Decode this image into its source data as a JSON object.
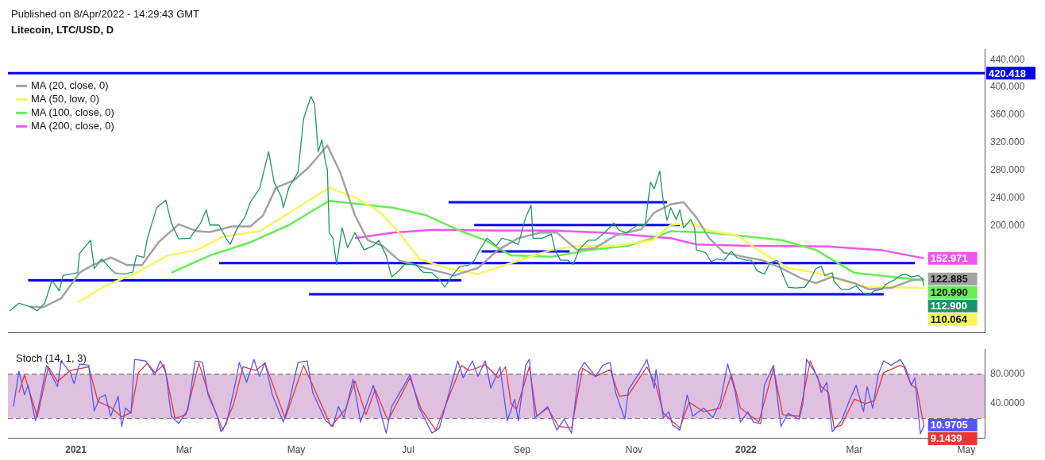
{
  "chart_data": [
    {
      "type": "line",
      "title": "Litecoin, LTC/USD, D",
      "annotations": [
        "Published on 8/Apr/2022 - 14:29:43 GMT"
      ],
      "xlim": [
        "2020-11-25",
        "2022-05-11"
      ],
      "ylim": [
        45,
        455
      ],
      "yticks": [
        {
          "value": 200,
          "label": "200.000"
        },
        {
          "value": 240,
          "label": "240.000"
        },
        {
          "value": 280,
          "label": "280.000"
        },
        {
          "value": 320,
          "label": "320.000"
        },
        {
          "value": 360,
          "label": "360.000"
        },
        {
          "value": 400,
          "label": "400.000"
        },
        {
          "value": 440,
          "label": "440.000"
        }
      ],
      "tick_labels": "y",
      "legend": "top left",
      "ref_lines": [
        {
          "axis": "y",
          "value": 420.418,
          "label": "420.418",
          "color": "#0000ff"
        }
      ],
      "series": [
        {
          "color": "#1f9468",
          "x": [
            "2020-11-26",
            "2020-12-01",
            "2020-12-07",
            "2020-12-11",
            "2020-12-15",
            "2020-12-19",
            "2020-12-23",
            "2020-12-25",
            "2021-01-02",
            "2021-01-03",
            "2021-01-09",
            "2021-01-11",
            "2021-01-15",
            "2021-01-22",
            "2021-01-27",
            "2021-02-01",
            "2021-02-03",
            "2021-02-07",
            "2021-02-09",
            "2021-02-14",
            "2021-02-19",
            "2021-02-22",
            "2021-02-26",
            "2021-03-04",
            "2021-03-10",
            "2021-03-13",
            "2021-03-15",
            "2021-03-20",
            "2021-03-24",
            "2021-03-26",
            "2021-03-30",
            "2021-04-03",
            "2021-04-06",
            "2021-04-11",
            "2021-04-16",
            "2021-04-19",
            "2021-04-23",
            "2021-04-24",
            "2021-04-27",
            "2021-05-02",
            "2021-05-05",
            "2021-05-09",
            "2021-05-11",
            "2021-05-13",
            "2021-05-15",
            "2021-05-17",
            "2021-05-18",
            "2021-05-19",
            "2021-05-21",
            "2021-05-23",
            "2021-05-26",
            "2021-05-29",
            "2021-06-02",
            "2021-06-07",
            "2021-06-12",
            "2021-06-15",
            "2021-06-19",
            "2021-06-22",
            "2021-06-26",
            "2021-06-29",
            "2021-07-05",
            "2021-07-09",
            "2021-07-14",
            "2021-07-19",
            "2021-07-21",
            "2021-07-24",
            "2021-07-29",
            "2021-08-03",
            "2021-08-06",
            "2021-08-09",
            "2021-08-13",
            "2021-08-18",
            "2021-08-21",
            "2021-08-25",
            "2021-08-30",
            "2021-09-03",
            "2021-09-06",
            "2021-09-07",
            "2021-09-12",
            "2021-09-17",
            "2021-09-19",
            "2021-09-22",
            "2021-09-26",
            "2021-09-29",
            "2021-10-02",
            "2021-10-07",
            "2021-10-11",
            "2021-10-16",
            "2021-10-21",
            "2021-10-24",
            "2021-10-28",
            "2021-11-03",
            "2021-11-07",
            "2021-11-10",
            "2021-11-12",
            "2021-11-15",
            "2021-11-17",
            "2021-11-19",
            "2021-11-21",
            "2021-11-24",
            "2021-11-26",
            "2021-11-28",
            "2021-12-02",
            "2021-12-04",
            "2021-12-05",
            "2021-12-10",
            "2021-12-13",
            "2021-12-16",
            "2021-12-20",
            "2021-12-24",
            "2021-12-27",
            "2022-01-01",
            "2022-01-04",
            "2022-01-07",
            "2022-01-11",
            "2022-01-14",
            "2022-01-18",
            "2022-01-21",
            "2022-01-24",
            "2022-01-28",
            "2022-02-02",
            "2022-02-05",
            "2022-02-08",
            "2022-02-11",
            "2022-02-13",
            "2022-02-17",
            "2022-02-18",
            "2022-02-22",
            "2022-02-26",
            "2022-03-02",
            "2022-03-06",
            "2022-03-09",
            "2022-03-12",
            "2022-03-16",
            "2022-03-18",
            "2022-03-23",
            "2022-03-26",
            "2022-03-29",
            "2022-04-01",
            "2022-04-05",
            "2022-04-07",
            "2022-04-08"
          ],
          "values": [
            77,
            88,
            83,
            77,
            88,
            121,
            106,
            128,
            132,
            160,
            179,
            138,
            152,
            132,
            130,
            133,
            157,
            154,
            182,
            226,
            237,
            204,
            181,
            182,
            204,
            223,
            201,
            201,
            181,
            173,
            197,
            212,
            234,
            253,
            307,
            263,
            241,
            226,
            255,
            277,
            354,
            387,
            376,
            307,
            324,
            291,
            281,
            190,
            182,
            144,
            197,
            168,
            190,
            165,
            171,
            179,
            157,
            126,
            135,
            144,
            144,
            133,
            132,
            119,
            111,
            124,
            141,
            143,
            150,
            165,
            182,
            171,
            182,
            179,
            173,
            212,
            230,
            182,
            182,
            188,
            165,
            150,
            150,
            144,
            165,
            179,
            179,
            190,
            204,
            193,
            190,
            201,
            201,
            263,
            253,
            279,
            234,
            208,
            226,
            209,
            223,
            197,
            209,
            197,
            165,
            161,
            148,
            152,
            150,
            163,
            154,
            150,
            150,
            135,
            130,
            146,
            150,
            130,
            111,
            110,
            111,
            122,
            138,
            141,
            128,
            132,
            119,
            108,
            108,
            113,
            102,
            100,
            106,
            108,
            115,
            122,
            128,
            130,
            126,
            128,
            124,
            112.9
          ],
          "value_labels": [
            null,
            null,
            null,
            null,
            null,
            null,
            null,
            null,
            null,
            null,
            null,
            null,
            null,
            null,
            null,
            null,
            null,
            null,
            null,
            null,
            null,
            null,
            null,
            null,
            null,
            null,
            null,
            null,
            null,
            null,
            null,
            null,
            null,
            null,
            null,
            null,
            null,
            null,
            null,
            null,
            null,
            null,
            null,
            null,
            null,
            null,
            null,
            null,
            null,
            null,
            null,
            null,
            null,
            null,
            null,
            null,
            null,
            null,
            null,
            null,
            null,
            null,
            null,
            null,
            null,
            null,
            null,
            null,
            null,
            null,
            null,
            null,
            null,
            null,
            null,
            null,
            null,
            null,
            null,
            null,
            null,
            null,
            null,
            null,
            null,
            null,
            null,
            null,
            null,
            null,
            null,
            null,
            null,
            null,
            null,
            null,
            null,
            null,
            null,
            null,
            null,
            null,
            null,
            null,
            null,
            null,
            null,
            null,
            null,
            null,
            null,
            null,
            null,
            null,
            null,
            null,
            null,
            null,
            null,
            null,
            null,
            null,
            null,
            null,
            null,
            null,
            null,
            null,
            null,
            null,
            null,
            null,
            null,
            null,
            null,
            null,
            null,
            null,
            null,
            null,
            null,
            "112.900"
          ]
        },
        {
          "name": "MA (20, close, 0)",
          "color": "#a3a3a3",
          "x": [
            "2020-12-07",
            "2020-12-14",
            "2020-12-24",
            "2021-01-03",
            "2021-01-10",
            "2021-01-20",
            "2021-01-29",
            "2021-02-06",
            "2021-02-15",
            "2021-02-26",
            "2021-03-08",
            "2021-03-15",
            "2021-03-27",
            "2021-04-06",
            "2021-04-13",
            "2021-04-20",
            "2021-04-30",
            "2021-05-08",
            "2021-05-18",
            "2021-05-25",
            "2021-06-02",
            "2021-06-09",
            "2021-06-17",
            "2021-06-26",
            "2021-07-10",
            "2021-07-26",
            "2021-08-08",
            "2021-08-19",
            "2021-08-30",
            "2021-09-11",
            "2021-09-20",
            "2021-10-01",
            "2021-10-11",
            "2021-10-22",
            "2021-11-05",
            "2021-11-12",
            "2021-11-21",
            "2021-11-28",
            "2021-12-05",
            "2021-12-12",
            "2021-12-20",
            "2021-12-31",
            "2022-01-10",
            "2022-01-20",
            "2022-01-31",
            "2022-02-08",
            "2022-02-17",
            "2022-03-01",
            "2022-03-09",
            "2022-03-21",
            "2022-04-01",
            "2022-04-08"
          ],
          "values": [
            83,
            82,
            95,
            132,
            143,
            154,
            143,
            143,
            176,
            202,
            192,
            191,
            199,
            199,
            215,
            255,
            266,
            285,
            316,
            277,
            215,
            179,
            171,
            150,
            139,
            128,
            139,
            165,
            182,
            190,
            190,
            165,
            168,
            186,
            195,
            219,
            231,
            234,
            212,
            182,
            161,
            155,
            150,
            139,
            124,
            117,
            126,
            117,
            108,
            110,
            121,
            122.885
          ],
          "value_labels": [
            null,
            null,
            null,
            null,
            null,
            null,
            null,
            null,
            null,
            null,
            null,
            null,
            null,
            null,
            null,
            null,
            null,
            null,
            null,
            null,
            null,
            null,
            null,
            null,
            null,
            null,
            null,
            null,
            null,
            null,
            null,
            null,
            null,
            null,
            null,
            null,
            null,
            null,
            null,
            null,
            null,
            null,
            null,
            null,
            null,
            null,
            null,
            null,
            null,
            null,
            null,
            "122.885"
          ]
        },
        {
          "name": "MA (50, low, 0)",
          "color": "#f5f562",
          "x": [
            "2021-01-02",
            "2021-01-17",
            "2021-02-03",
            "2021-02-20",
            "2021-03-08",
            "2021-03-22",
            "2021-04-11",
            "2021-04-21",
            "2021-05-04",
            "2021-05-19",
            "2021-06-02",
            "2021-06-16",
            "2021-06-26",
            "2021-07-07",
            "2021-07-22",
            "2021-08-08",
            "2021-08-26",
            "2021-09-17",
            "2021-10-01",
            "2021-10-22",
            "2021-11-11",
            "2021-11-21",
            "2021-12-02",
            "2021-12-12",
            "2021-12-27",
            "2022-01-10",
            "2022-01-24",
            "2022-02-08",
            "2022-02-22",
            "2022-03-08",
            "2022-03-22",
            "2022-04-08"
          ],
          "values": [
            89,
            113,
            132,
            157,
            165,
            184,
            192,
            208,
            230,
            255,
            241,
            219,
            190,
            152,
            139,
            130,
            146,
            165,
            171,
            171,
            179,
            201,
            204,
            193,
            186,
            161,
            139,
            132,
            121,
            111,
            111,
            110.064
          ],
          "value_labels": [
            null,
            null,
            null,
            null,
            null,
            null,
            null,
            null,
            null,
            null,
            null,
            null,
            null,
            null,
            null,
            null,
            null,
            null,
            null,
            null,
            null,
            null,
            null,
            null,
            null,
            null,
            null,
            null,
            null,
            null,
            null,
            "110.064"
          ]
        },
        {
          "name": "MA (100, close, 0)",
          "color": "#66ee55",
          "x": [
            "2021-02-22",
            "2021-03-15",
            "2021-04-06",
            "2021-04-27",
            "2021-05-19",
            "2021-06-09",
            "2021-06-23",
            "2021-07-11",
            "2021-07-29",
            "2021-08-12",
            "2021-08-26",
            "2021-09-17",
            "2021-10-08",
            "2021-10-29",
            "2021-11-11",
            "2021-11-21",
            "2021-12-12",
            "2022-01-03",
            "2022-01-21",
            "2022-02-08",
            "2022-03-01",
            "2022-03-22",
            "2022-04-08"
          ],
          "values": [
            132,
            157,
            176,
            201,
            236,
            230,
            226,
            215,
            193,
            179,
            157,
            155,
            165,
            171,
            182,
            192,
            190,
            184,
            179,
            165,
            132,
            126,
            120.99
          ],
          "value_labels": [
            null,
            null,
            null,
            null,
            null,
            null,
            null,
            null,
            null,
            null,
            null,
            null,
            null,
            null,
            null,
            null,
            null,
            null,
            null,
            null,
            null,
            null,
            "120.990"
          ]
        },
        {
          "name": "MA (200, close, 0)",
          "color": "#ee55ee",
          "x": [
            "2021-06-02",
            "2021-06-23",
            "2021-07-14",
            "2021-08-19",
            "2021-09-17",
            "2021-10-15",
            "2021-11-11",
            "2021-11-21",
            "2021-12-05",
            "2022-01-03",
            "2022-02-14",
            "2022-03-15",
            "2022-04-08"
          ],
          "values": [
            182,
            190,
            194,
            193,
            193,
            190,
            184,
            182,
            173,
            171,
            170,
            165,
            152.971
          ],
          "value_labels": [
            null,
            null,
            null,
            null,
            null,
            null,
            null,
            null,
            null,
            null,
            null,
            null,
            "152.971"
          ]
        },
        {
          "color": "#0000ff",
          "x": [
            "2020-12-06",
            "2021-07-30"
          ],
          "values": [
            121,
            121
          ]
        },
        {
          "color": "#0000ff",
          "x": [
            "2021-03-20",
            "2022-04-03"
          ],
          "values": [
            146,
            146
          ]
        },
        {
          "color": "#0000ff",
          "x": [
            "2021-05-08",
            "2022-03-17"
          ],
          "values": [
            101,
            101
          ]
        },
        {
          "color": "#0000ff",
          "x": [
            "2021-07-23",
            "2021-11-19"
          ],
          "values": [
            234,
            234
          ]
        },
        {
          "color": "#0000ff",
          "x": [
            "2021-08-06",
            "2021-11-26"
          ],
          "values": [
            201,
            201
          ]
        },
        {
          "color": "#0000ff",
          "x": [
            "2021-08-10",
            "2021-09-27"
          ],
          "values": [
            163,
            163
          ]
        }
      ]
    },
    {
      "type": "line",
      "title": "Stoch (14, 1, 3)",
      "xlim": [
        "2020-11-25",
        "2022-05-11"
      ],
      "xticks": [
        {
          "value": "2021-01-01",
          "label": "2021"
        },
        {
          "value": "2021-03-01",
          "label": "Mar"
        },
        {
          "value": "2021-05-01",
          "label": "May"
        },
        {
          "value": "2021-07-01",
          "label": "Jul"
        },
        {
          "value": "2021-09-01",
          "label": "Sep"
        },
        {
          "value": "2021-11-01",
          "label": "Nov"
        },
        {
          "value": "2022-01-01",
          "label": "2022"
        },
        {
          "value": "2022-03-01",
          "label": "Mar"
        },
        {
          "value": "2022-05-01",
          "label": "May"
        }
      ],
      "ylim": [
        -7,
        114
      ],
      "yticks": [
        {
          "value": 40,
          "label": "40.0000"
        },
        {
          "value": 80,
          "label": "80.0000"
        }
      ],
      "bands": [
        {
          "axis": "y",
          "from": 20,
          "to": 80,
          "color": "#dfc1df"
        }
      ],
      "ref_lines": [
        {
          "axis": "y",
          "value": 80,
          "color": "#777777",
          "line_style": "dashed"
        },
        {
          "axis": "y",
          "value": 20,
          "color": "#777777",
          "line_style": "dashed"
        }
      ],
      "series": [
        {
          "color": "#5555ff",
          "x": [
            "2020-11-28",
            "2020-12-01",
            "2020-12-04",
            "2020-12-06",
            "2020-12-10",
            "2020-12-13",
            "2020-12-16",
            "2020-12-22",
            "2020-12-24",
            "2020-12-29",
            "2020-12-31",
            "2021-01-03",
            "2021-01-08",
            "2021-01-11",
            "2021-01-14",
            "2021-01-17",
            "2021-01-20",
            "2021-01-24",
            "2021-01-26",
            "2021-01-28",
            "2021-01-31",
            "2021-02-02",
            "2021-02-08",
            "2021-02-13",
            "2021-02-16",
            "2021-02-19",
            "2021-02-22",
            "2021-02-26",
            "2021-03-03",
            "2021-03-07",
            "2021-03-11",
            "2021-03-14",
            "2021-03-19",
            "2021-03-21",
            "2021-03-24",
            "2021-03-29",
            "2021-03-31",
            "2021-04-04",
            "2021-04-08",
            "2021-04-11",
            "2021-04-14",
            "2021-04-18",
            "2021-04-24",
            "2021-04-27",
            "2021-05-02",
            "2021-05-07",
            "2021-05-10",
            "2021-05-17",
            "2021-05-21",
            "2021-05-24",
            "2021-05-27",
            "2021-06-01",
            "2021-06-05",
            "2021-06-12",
            "2021-06-19",
            "2021-06-22",
            "2021-07-02",
            "2021-07-07",
            "2021-07-14",
            "2021-07-18",
            "2021-07-28",
            "2021-07-31",
            "2021-08-05",
            "2021-08-08",
            "2021-08-12",
            "2021-08-15",
            "2021-08-20",
            "2021-08-24",
            "2021-08-28",
            "2021-08-30",
            "2021-09-03",
            "2021-09-05",
            "2021-09-08",
            "2021-09-11",
            "2021-09-15",
            "2021-09-20",
            "2021-09-24",
            "2021-09-28",
            "2021-10-02",
            "2021-10-05",
            "2021-10-11",
            "2021-10-15",
            "2021-10-19",
            "2021-10-22",
            "2021-10-27",
            "2021-10-29",
            "2021-11-05",
            "2021-11-08",
            "2021-11-12",
            "2021-11-13",
            "2021-11-17",
            "2021-11-20",
            "2021-11-22",
            "2021-11-26",
            "2021-11-30",
            "2021-12-03",
            "2021-12-09",
            "2021-12-14",
            "2021-12-18",
            "2021-12-22",
            "2021-12-26",
            "2021-12-29",
            "2022-01-02",
            "2022-01-05",
            "2022-01-09",
            "2022-01-11",
            "2022-01-16",
            "2022-01-20",
            "2022-01-24",
            "2022-01-30",
            "2022-02-01",
            "2022-02-03",
            "2022-02-09",
            "2022-02-11",
            "2022-02-14",
            "2022-02-17",
            "2022-02-22",
            "2022-02-26",
            "2022-03-02",
            "2022-03-06",
            "2022-03-08",
            "2022-03-11",
            "2022-03-14",
            "2022-03-17",
            "2022-03-21",
            "2022-03-26",
            "2022-03-29",
            "2022-04-01",
            "2022-04-03",
            "2022-04-06",
            "2022-04-08"
          ],
          "values": [
            36,
            84,
            52,
            65,
            17,
            52,
            92,
            63,
            98,
            82,
            67,
            94,
            92,
            30,
            48,
            52,
            23,
            50,
            9,
            34,
            27,
            100,
            98,
            79,
            98,
            82,
            23,
            13,
            32,
            98,
            96,
            52,
            23,
            2,
            13,
            69,
            96,
            69,
            100,
            77,
            96,
            52,
            15,
            40,
            96,
            98,
            55,
            17,
            9,
            36,
            21,
            73,
            15,
            65,
            0,
            36,
            79,
            34,
            0,
            7,
            98,
            75,
            98,
            77,
            98,
            61,
            90,
            17,
            46,
            17,
            92,
            100,
            21,
            27,
            36,
            4,
            19,
            0,
            84,
            96,
            77,
            92,
            96,
            55,
            19,
            59,
            86,
            100,
            61,
            86,
            21,
            29,
            11,
            4,
            52,
            23,
            34,
            21,
            42,
            94,
            57,
            15,
            29,
            15,
            13,
            65,
            92,
            9,
            27,
            19,
            40,
            100,
            77,
            55,
            69,
            2,
            17,
            42,
            65,
            29,
            63,
            34,
            79,
            98,
            92,
            100,
            88,
            65,
            75,
            -1,
            10.9705
          ],
          "value_labels": [
            null,
            null,
            null,
            null,
            null,
            null,
            null,
            null,
            null,
            null,
            null,
            null,
            null,
            null,
            null,
            null,
            null,
            null,
            null,
            null,
            null,
            null,
            null,
            null,
            null,
            null,
            null,
            null,
            null,
            null,
            null,
            null,
            null,
            null,
            null,
            null,
            null,
            null,
            null,
            null,
            null,
            null,
            null,
            null,
            null,
            null,
            null,
            null,
            null,
            null,
            null,
            null,
            null,
            null,
            null,
            null,
            null,
            null,
            null,
            null,
            null,
            null,
            null,
            null,
            null,
            null,
            null,
            null,
            null,
            null,
            null,
            null,
            null,
            null,
            null,
            null,
            null,
            null,
            null,
            null,
            null,
            null,
            null,
            null,
            null,
            null,
            null,
            null,
            null,
            null,
            null,
            null,
            null,
            null,
            null,
            null,
            null,
            null,
            null,
            null,
            null,
            null,
            null,
            null,
            null,
            null,
            null,
            null,
            null,
            null,
            null,
            null,
            null,
            null,
            null,
            null,
            null,
            null,
            null,
            null,
            null,
            null,
            null,
            null,
            null,
            null,
            null,
            null,
            null,
            null,
            "10.9705"
          ]
        },
        {
          "color": "#ee3333",
          "x": [
            "2020-12-01",
            "2020-12-04",
            "2020-12-11",
            "2020-12-17",
            "2020-12-22",
            "2020-12-29",
            "2021-01-08",
            "2021-01-13",
            "2021-01-20",
            "2021-01-26",
            "2021-01-31",
            "2021-02-04",
            "2021-02-09",
            "2021-02-13",
            "2021-02-18",
            "2021-02-24",
            "2021-03-02",
            "2021-03-09",
            "2021-03-14",
            "2021-03-22",
            "2021-03-28",
            "2021-04-02",
            "2021-04-09",
            "2021-04-14",
            "2021-04-25",
            "2021-05-05",
            "2021-05-10",
            "2021-05-20",
            "2021-05-28",
            "2021-06-02",
            "2021-06-08",
            "2021-06-13",
            "2021-06-20",
            "2021-07-02",
            "2021-07-08",
            "2021-07-16",
            "2021-07-30",
            "2021-08-03",
            "2021-08-07",
            "2021-08-12",
            "2021-08-19",
            "2021-08-23",
            "2021-08-26",
            "2021-08-29",
            "2021-09-05",
            "2021-09-09",
            "2021-09-15",
            "2021-09-21",
            "2021-09-28",
            "2021-10-04",
            "2021-10-11",
            "2021-10-19",
            "2021-10-24",
            "2021-10-29",
            "2021-11-08",
            "2021-11-13",
            "2021-11-17",
            "2021-11-26",
            "2021-12-01",
            "2021-12-09",
            "2021-12-18",
            "2021-12-24",
            "2021-12-29",
            "2022-01-08",
            "2022-01-16",
            "2022-01-21",
            "2022-01-30",
            "2022-02-05",
            "2022-02-11",
            "2022-02-15",
            "2022-02-18",
            "2022-02-22",
            "2022-03-01",
            "2022-03-07",
            "2022-03-12",
            "2022-03-17",
            "2022-03-26",
            "2022-03-28",
            "2022-04-01",
            "2022-04-04",
            "2022-04-08"
          ],
          "values": [
            55,
            79,
            22,
            90,
            70,
            85,
            90,
            43,
            35,
            22,
            28,
            82,
            95,
            82,
            93,
            20,
            25,
            95,
            55,
            4,
            40,
            90,
            85,
            95,
            20,
            92,
            65,
            9,
            33,
            71,
            25,
            59,
            17,
            75,
            33,
            4,
            92,
            85,
            88,
            93,
            75,
            90,
            40,
            32,
            90,
            23,
            34,
            9,
            7,
            88,
            77,
            86,
            50,
            52,
            90,
            65,
            27,
            7,
            42,
            29,
            34,
            79,
            34,
            15,
            88,
            25,
            23,
            98,
            63,
            55,
            7,
            11,
            46,
            40,
            44,
            82,
            92,
            90,
            65,
            61,
            9.1439
          ],
          "value_labels": [
            null,
            null,
            null,
            null,
            null,
            null,
            null,
            null,
            null,
            null,
            null,
            null,
            null,
            null,
            null,
            null,
            null,
            null,
            null,
            null,
            null,
            null,
            null,
            null,
            null,
            null,
            null,
            null,
            null,
            null,
            null,
            null,
            null,
            null,
            null,
            null,
            null,
            null,
            null,
            null,
            null,
            null,
            null,
            null,
            null,
            null,
            null,
            null,
            null,
            null,
            null,
            null,
            null,
            null,
            null,
            null,
            null,
            null,
            null,
            null,
            null,
            null,
            null,
            null,
            null,
            null,
            null,
            null,
            null,
            null,
            null,
            null,
            null,
            null,
            null,
            null,
            null,
            null,
            null,
            null,
            "9.1439"
          ]
        }
      ]
    }
  ]
}
